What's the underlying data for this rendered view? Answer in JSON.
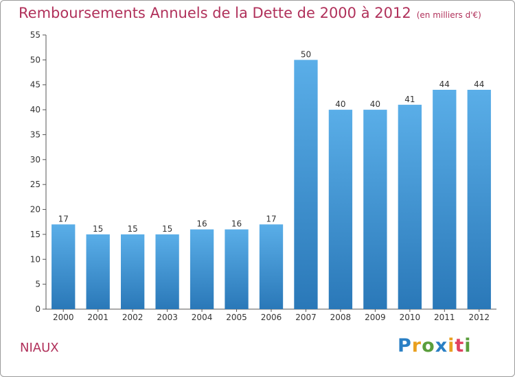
{
  "title": "Remboursements Annuels de la Dette de 2000 à 2012",
  "title_unit": "(en milliers d'€)",
  "commune": "NIAUX",
  "logo": {
    "letters": [
      "P",
      "r",
      "o",
      "x",
      "i",
      "t",
      "i"
    ],
    "colors": [
      "#2a7fc4",
      "#e9a020",
      "#5a9e3c",
      "#2a7fc4",
      "#e9a020",
      "#e04060",
      "#5a9e3c"
    ]
  },
  "chart_data": {
    "type": "bar",
    "categories": [
      "2000",
      "2001",
      "2002",
      "2003",
      "2004",
      "2005",
      "2006",
      "2007",
      "2008",
      "2009",
      "2010",
      "2011",
      "2012"
    ],
    "values": [
      17,
      15,
      15,
      15,
      16,
      16,
      17,
      50,
      40,
      40,
      41,
      44,
      44
    ],
    "ylim": [
      0,
      55
    ],
    "yticks": [
      0,
      5,
      10,
      15,
      20,
      25,
      30,
      35,
      40,
      45,
      50,
      55
    ],
    "grid": false,
    "bar_color_top": "#5aaee8",
    "bar_color_bottom": "#2a78b8",
    "title_color": "#b0305a"
  }
}
